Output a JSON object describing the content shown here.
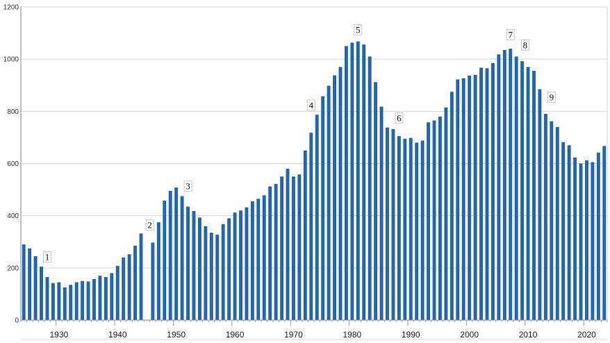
{
  "chart_data": {
    "type": "bar",
    "title": "",
    "xlabel": "",
    "ylabel": "",
    "x_range": [
      1924,
      2023
    ],
    "ylim": [
      0,
      1200
    ],
    "yticks": [
      0,
      200,
      400,
      600,
      800,
      1000,
      1200
    ],
    "xticks": [
      1930,
      1940,
      1950,
      1960,
      1970,
      1980,
      1990,
      2000,
      2010,
      2020
    ],
    "grid": "horizontal",
    "legend": "none",
    "bar_color": "#1f66b3",
    "x": [
      1924,
      1925,
      1926,
      1927,
      1928,
      1929,
      1930,
      1931,
      1932,
      1933,
      1934,
      1935,
      1936,
      1937,
      1938,
      1939,
      1940,
      1941,
      1942,
      1943,
      1944,
      1945,
      1946,
      1947,
      1948,
      1949,
      1950,
      1951,
      1952,
      1953,
      1954,
      1955,
      1956,
      1957,
      1958,
      1959,
      1960,
      1961,
      1962,
      1963,
      1964,
      1965,
      1966,
      1967,
      1968,
      1969,
      1970,
      1971,
      1972,
      1973,
      1974,
      1975,
      1976,
      1977,
      1978,
      1979,
      1980,
      1981,
      1982,
      1983,
      1984,
      1985,
      1986,
      1987,
      1988,
      1989,
      1990,
      1991,
      1992,
      1993,
      1994,
      1995,
      1996,
      1997,
      1998,
      1999,
      2000,
      2001,
      2002,
      2003,
      2004,
      2005,
      2006,
      2007,
      2008,
      2009,
      2010,
      2011,
      2012,
      2013,
      2014,
      2015,
      2016,
      2017,
      2018,
      2019,
      2020,
      2021,
      2022,
      2023
    ],
    "values": [
      290,
      275,
      245,
      205,
      165,
      142,
      145,
      125,
      135,
      145,
      150,
      148,
      157,
      170,
      165,
      180,
      208,
      240,
      252,
      285,
      332,
      0,
      297,
      375,
      458,
      495,
      508,
      475,
      435,
      418,
      393,
      360,
      335,
      327,
      368,
      390,
      412,
      420,
      432,
      455,
      465,
      478,
      512,
      522,
      550,
      580,
      550,
      558,
      650,
      718,
      787,
      858,
      898,
      938,
      970,
      1050,
      1063,
      1068,
      1056,
      1010,
      912,
      818,
      738,
      732,
      705,
      695,
      698,
      680,
      688,
      758,
      765,
      780,
      815,
      875,
      922,
      927,
      937,
      940,
      967,
      965,
      985,
      1018,
      1035,
      1040,
      1010,
      992,
      970,
      955,
      885,
      790,
      762,
      740,
      682,
      670,
      623,
      600,
      612,
      605,
      642,
      667
    ],
    "annotations": [
      {
        "label": "1",
        "x": 1928,
        "y": 238
      },
      {
        "label": "2",
        "x": 1945.5,
        "y": 360
      },
      {
        "label": "3",
        "x": 1952,
        "y": 510
      },
      {
        "label": "4",
        "x": 1973,
        "y": 820
      },
      {
        "label": "5",
        "x": 1981,
        "y": 1108
      },
      {
        "label": "6",
        "x": 1988,
        "y": 770
      },
      {
        "label": "7",
        "x": 2007,
        "y": 1090
      },
      {
        "label": "8",
        "x": 2009.5,
        "y": 1050
      },
      {
        "label": "9",
        "x": 2014,
        "y": 850
      }
    ]
  }
}
